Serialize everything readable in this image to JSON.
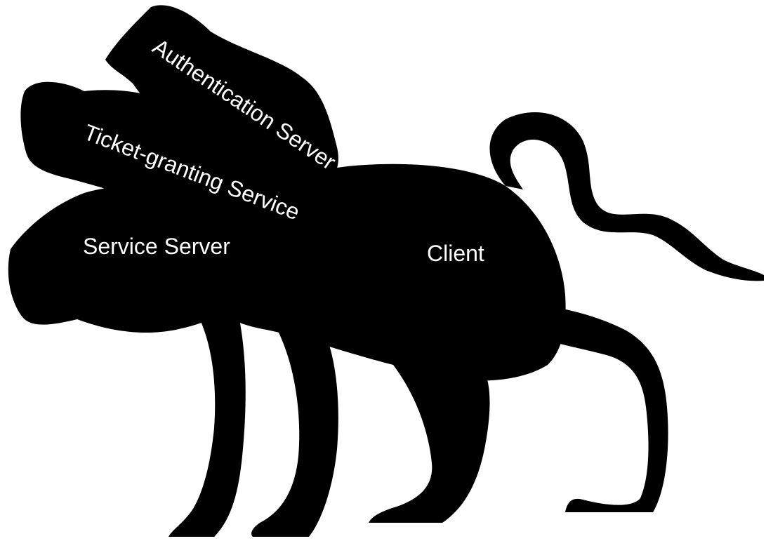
{
  "colors": {
    "silhouette": "#000000",
    "background": "#ffffff",
    "label_text": "#ffffff"
  },
  "figure": {
    "icon": "three-headed-dog-silhouette-icon",
    "labels": {
      "head_top": "Authentication Server",
      "head_middle": "Ticket-granting Service",
      "head_bottom": "Service Server",
      "body": "Client"
    }
  }
}
